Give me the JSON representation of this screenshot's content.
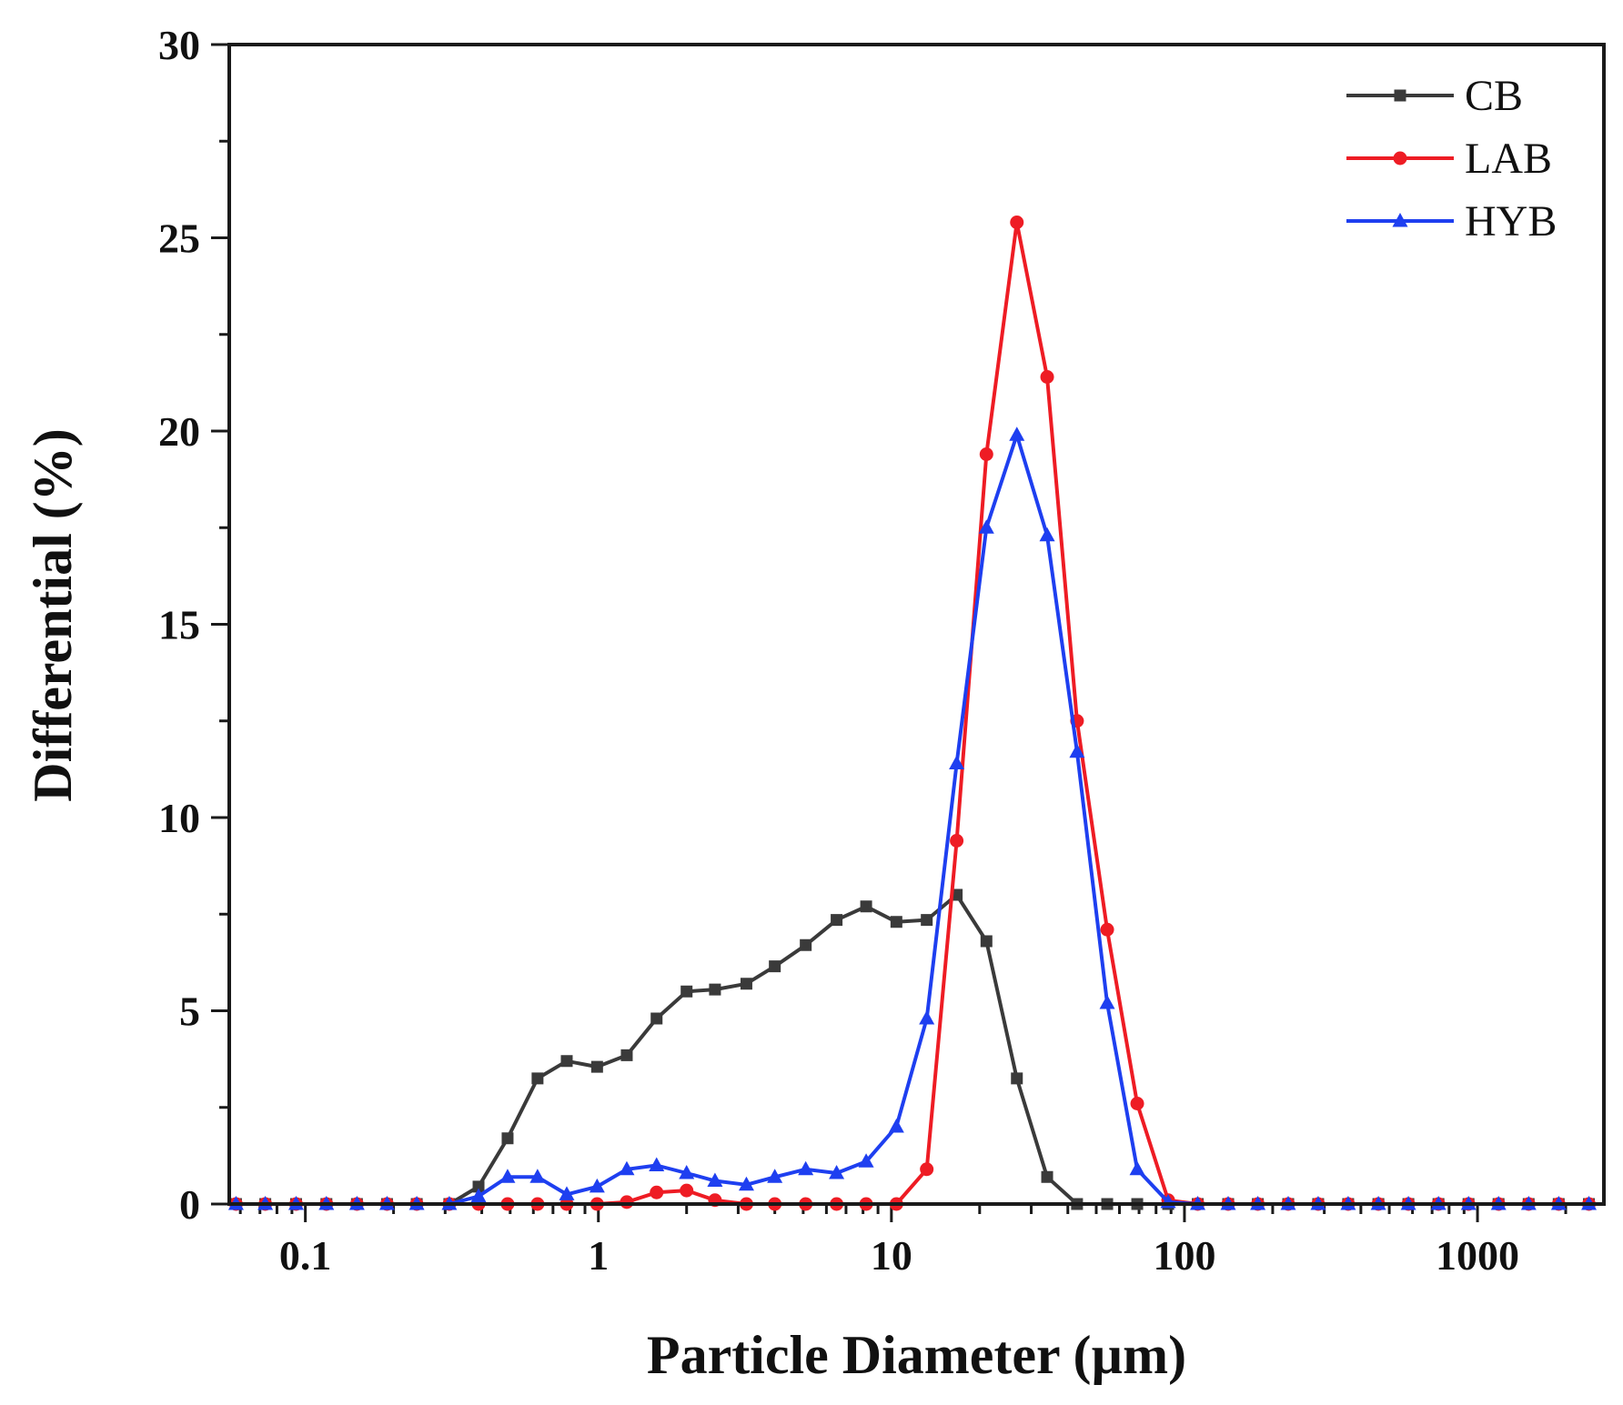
{
  "chart_data": {
    "type": "line",
    "title": "",
    "xlabel": "Particle Diameter (µm)",
    "ylabel": "Differential (%)",
    "x_scale": "log",
    "xlim": [
      0.055,
      2700
    ],
    "ylim": [
      0,
      30
    ],
    "x_ticks": [
      0.1,
      1,
      10,
      100,
      1000
    ],
    "x_tick_labels": [
      "0.1",
      "1",
      "10",
      "100",
      "1000"
    ],
    "y_ticks": [
      0,
      5,
      10,
      15,
      20,
      25,
      30
    ],
    "y_tick_labels": [
      "0",
      "5",
      "10",
      "15",
      "20",
      "25",
      "30"
    ],
    "legend_position": "top-right",
    "x": [
      0.058,
      0.073,
      0.093,
      0.118,
      0.15,
      0.19,
      0.24,
      0.31,
      0.39,
      0.49,
      0.62,
      0.78,
      0.99,
      1.25,
      1.58,
      2.0,
      2.5,
      3.2,
      4.0,
      5.1,
      6.5,
      8.2,
      10.4,
      13.2,
      16.7,
      21.1,
      26.8,
      34.0,
      43.0,
      54.5,
      69.0,
      88.0,
      111,
      141,
      178,
      226,
      286,
      362,
      459,
      581,
      736,
      932,
      1180,
      1495,
      1893,
      2400
    ],
    "series": [
      {
        "name": "CB",
        "color": "#3a3a3a",
        "marker": "square",
        "values": [
          0,
          0,
          0,
          0,
          0,
          0,
          0,
          0,
          0.45,
          1.7,
          3.25,
          3.7,
          3.55,
          3.85,
          4.8,
          5.5,
          5.55,
          5.7,
          6.15,
          6.7,
          7.35,
          7.7,
          7.3,
          7.35,
          8.0,
          6.8,
          3.25,
          0.7,
          0,
          0,
          0,
          0,
          0,
          0,
          0,
          0,
          0,
          0,
          0,
          0,
          0,
          0,
          0,
          0,
          0,
          0
        ]
      },
      {
        "name": "LAB",
        "color": "#ee1c24",
        "marker": "circle",
        "values": [
          0,
          0,
          0,
          0,
          0,
          0,
          0,
          0,
          0,
          0,
          0,
          0,
          0,
          0.05,
          0.3,
          0.35,
          0.1,
          0,
          0,
          0,
          0,
          0,
          0,
          0.9,
          9.4,
          19.4,
          25.4,
          21.4,
          12.5,
          7.1,
          2.6,
          0.1,
          0,
          0,
          0,
          0,
          0,
          0,
          0,
          0,
          0,
          0,
          0,
          0,
          0,
          0
        ]
      },
      {
        "name": "HYB",
        "color": "#1e3ff0",
        "marker": "triangle",
        "values": [
          0,
          0,
          0,
          0,
          0,
          0,
          0,
          0,
          0.2,
          0.7,
          0.7,
          0.25,
          0.45,
          0.9,
          1.0,
          0.8,
          0.6,
          0.5,
          0.7,
          0.9,
          0.8,
          1.1,
          2.0,
          4.8,
          11.4,
          17.5,
          19.9,
          17.3,
          11.7,
          5.2,
          0.9,
          0.05,
          0,
          0,
          0,
          0,
          0,
          0,
          0,
          0,
          0,
          0,
          0,
          0,
          0,
          0
        ]
      }
    ]
  }
}
